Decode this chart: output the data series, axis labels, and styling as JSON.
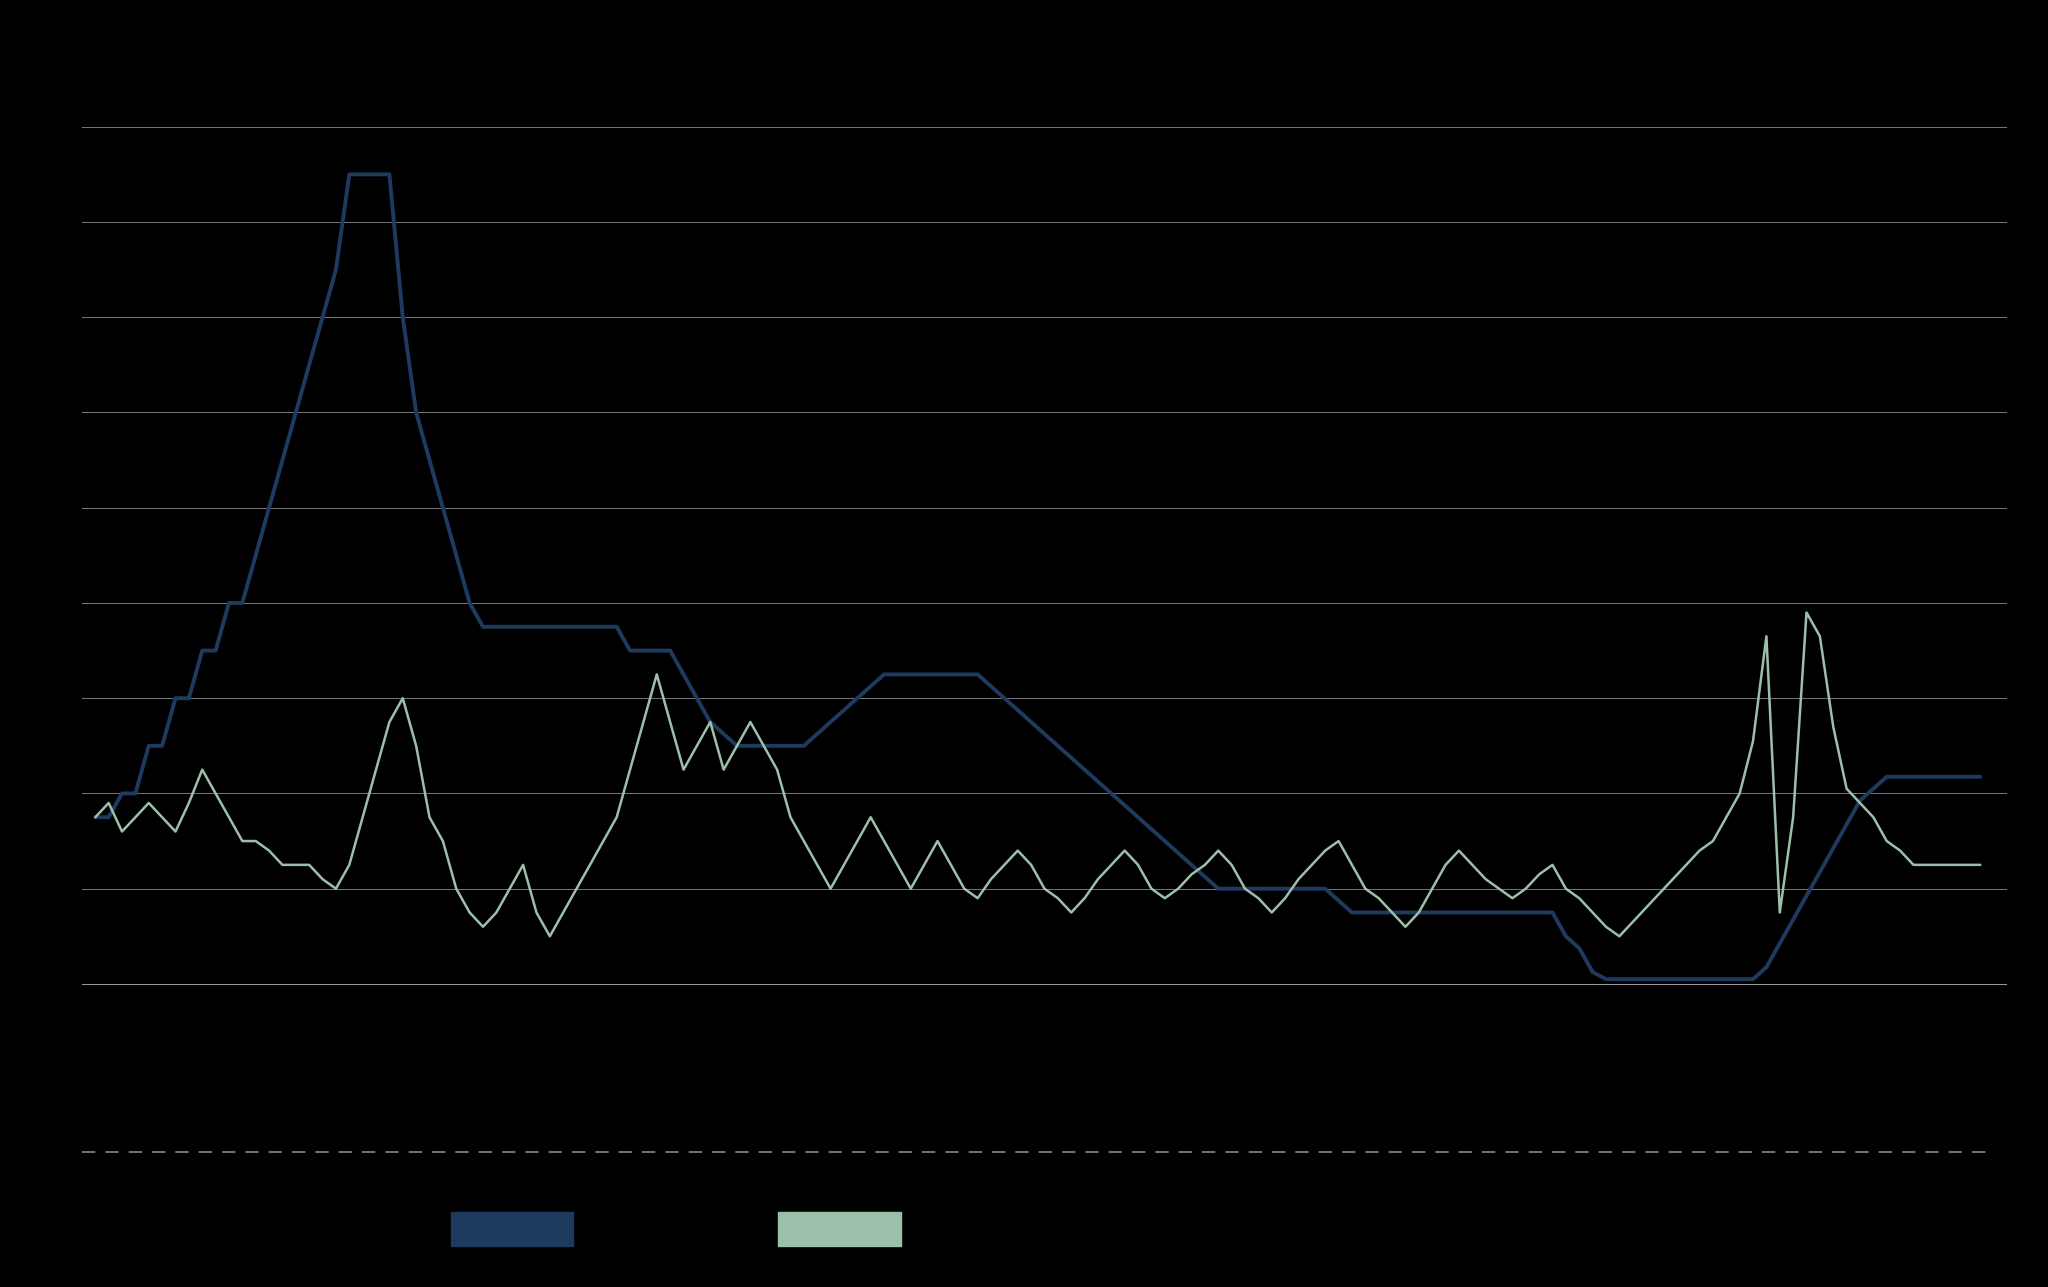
{
  "background_color": "#000000",
  "plot_bg_color": "#000000",
  "grid_color": "#aaaaaa",
  "line1_color": "#1e3a5f",
  "line2_color": "#9dbfaa",
  "dashed_line_color": "#555555",
  "legend1_color": "#1e3a5f",
  "legend2_color": "#9dbfaa",
  "ylim": [
    -1.5,
    18.5
  ],
  "yticks": [
    0,
    2,
    4,
    6,
    8,
    10,
    12,
    14,
    16,
    18
  ],
  "figsize": [
    20.48,
    12.87
  ],
  "dpi": 100,
  "cash_rate": [
    3.5,
    3.5,
    4.0,
    4.0,
    5.0,
    5.0,
    6.0,
    6.0,
    7.0,
    7.0,
    8.0,
    8.0,
    9.0,
    10.0,
    11.0,
    12.0,
    13.0,
    14.0,
    15.0,
    17.0,
    17.0,
    17.0,
    17.0,
    14.0,
    12.0,
    11.0,
    10.0,
    9.0,
    8.0,
    7.5,
    7.5,
    7.5,
    7.5,
    7.5,
    7.5,
    7.5,
    7.5,
    7.5,
    7.5,
    7.5,
    7.0,
    7.0,
    7.0,
    7.0,
    6.5,
    6.0,
    5.5,
    5.25,
    5.0,
    5.0,
    5.0,
    5.0,
    5.0,
    5.0,
    5.25,
    5.5,
    5.75,
    6.0,
    6.25,
    6.5,
    6.5,
    6.5,
    6.5,
    6.5,
    6.5,
    6.5,
    6.5,
    6.25,
    6.0,
    5.75,
    5.5,
    5.25,
    5.0,
    4.75,
    4.5,
    4.25,
    4.0,
    3.75,
    3.5,
    3.25,
    3.0,
    2.75,
    2.5,
    2.25,
    2.0,
    2.0,
    2.0,
    2.0,
    2.0,
    2.0,
    2.0,
    2.0,
    2.0,
    1.75,
    1.5,
    1.5,
    1.5,
    1.5,
    1.5,
    1.5,
    1.5,
    1.5,
    1.5,
    1.5,
    1.5,
    1.5,
    1.5,
    1.5,
    1.5,
    1.5,
    1.0,
    0.75,
    0.25,
    0.1,
    0.1,
    0.1,
    0.1,
    0.1,
    0.1,
    0.1,
    0.1,
    0.1,
    0.1,
    0.1,
    0.1,
    0.35,
    0.85,
    1.35,
    1.85,
    2.35,
    2.85,
    3.35,
    3.85,
    4.1,
    4.35,
    4.35,
    4.35,
    4.35,
    4.35,
    4.35,
    4.35,
    4.35
  ],
  "inflation": [
    3.5,
    3.8,
    3.2,
    3.5,
    3.8,
    3.5,
    3.2,
    3.8,
    4.5,
    4.0,
    3.5,
    3.0,
    3.0,
    2.8,
    2.5,
    2.5,
    2.5,
    2.2,
    2.0,
    2.5,
    3.5,
    4.5,
    5.5,
    6.0,
    5.0,
    3.5,
    3.0,
    2.0,
    1.5,
    1.2,
    1.5,
    2.0,
    2.5,
    1.5,
    1.0,
    1.5,
    2.0,
    2.5,
    3.0,
    3.5,
    4.5,
    5.5,
    6.5,
    5.5,
    4.5,
    5.0,
    5.5,
    4.5,
    5.0,
    5.5,
    5.0,
    4.5,
    3.5,
    3.0,
    2.5,
    2.0,
    2.5,
    3.0,
    3.5,
    3.0,
    2.5,
    2.0,
    2.5,
    3.0,
    2.5,
    2.0,
    1.8,
    2.2,
    2.5,
    2.8,
    2.5,
    2.0,
    1.8,
    1.5,
    1.8,
    2.2,
    2.5,
    2.8,
    2.5,
    2.0,
    1.8,
    2.0,
    2.3,
    2.5,
    2.8,
    2.5,
    2.0,
    1.8,
    1.5,
    1.8,
    2.2,
    2.5,
    2.8,
    3.0,
    2.5,
    2.0,
    1.8,
    1.5,
    1.2,
    1.5,
    2.0,
    2.5,
    2.8,
    2.5,
    2.2,
    2.0,
    1.8,
    2.0,
    2.3,
    2.5,
    2.0,
    1.8,
    1.5,
    1.2,
    1.0,
    1.3,
    1.6,
    1.9,
    2.2,
    2.5,
    2.8,
    3.0,
    3.5,
    4.0,
    5.1,
    7.3,
    1.5,
    3.5,
    7.8,
    7.3,
    5.4,
    4.1,
    3.8,
    3.5,
    3.0,
    2.8,
    2.5,
    2.5,
    2.5,
    2.5,
    2.5,
    2.5
  ]
}
